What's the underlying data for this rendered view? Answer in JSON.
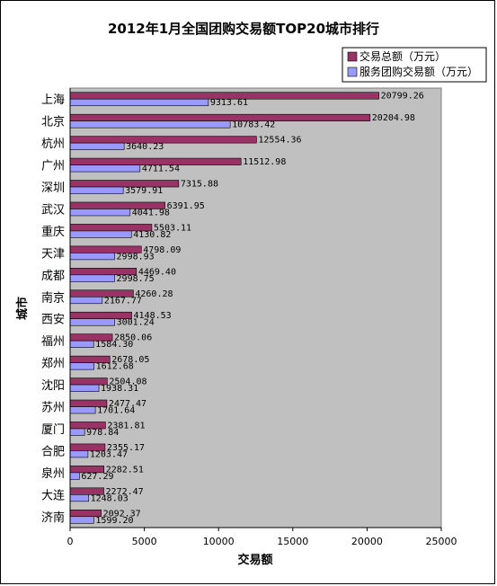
{
  "chart_data": {
    "type": "bar",
    "orientation": "horizontal",
    "title": "2012年1月全国团购交易额TOP20城市排行",
    "xlabel": "交易额",
    "ylabel": "城市",
    "xlim": [
      0,
      25000
    ],
    "xticks": [
      "0",
      "5000",
      "10000",
      "15000",
      "20000",
      "25000"
    ],
    "legend_position": "top-right",
    "grid": false,
    "plot_background": "#c0c0c0",
    "categories": [
      "上海",
      "北京",
      "杭州",
      "广州",
      "深圳",
      "武汉",
      "重庆",
      "天津",
      "成都",
      "南京",
      "西安",
      "福州",
      "郑州",
      "沈阳",
      "苏州",
      "厦门",
      "合肥",
      "泉州",
      "大连",
      "济南"
    ],
    "series": [
      {
        "name": "交易总额（万元）",
        "color": "#993366",
        "values": [
          20799.26,
          20204.98,
          12554.36,
          11512.98,
          7315.88,
          6391.95,
          5503.11,
          4798.09,
          4469.4,
          4260.28,
          4148.53,
          2850.06,
          2678.05,
          2504.08,
          2477.47,
          2381.81,
          2355.17,
          2282.51,
          2272.47,
          2092.37
        ],
        "labels": [
          "20799.26",
          "20204.98",
          "12554.36",
          "11512.98",
          "7315.88",
          "6391.95",
          "5503.11",
          "4798.09",
          "4469.40",
          "4260.28",
          "4148.53",
          "2850.06",
          "2678.05",
          "2504.08",
          "2477.47",
          "2381.81",
          "2355.17",
          "2282.51",
          "2272.47",
          "2092.37"
        ]
      },
      {
        "name": "服务团购交易额（万元）",
        "color": "#9999ff",
        "values": [
          9313.61,
          10783.42,
          3640.23,
          4711.54,
          3579.91,
          4041.98,
          4130.82,
          2998.93,
          2998.75,
          2167.77,
          3001.24,
          1584.3,
          1612.68,
          1938.31,
          1701.64,
          978.84,
          1203.47,
          627.29,
          1248.03,
          1599.2
        ],
        "labels": [
          "9313.61",
          "10783.42",
          "3640.23",
          "4711.54",
          "3579.91",
          "4041.98",
          "4130.82",
          "2998.93",
          "2998.75",
          "2167.77",
          "3001.24",
          "1584.30",
          "1612.68",
          "1938.31",
          "1701.64",
          "978.84",
          "1203.47",
          "627.29",
          "1248.03",
          "1599.20"
        ]
      }
    ]
  }
}
